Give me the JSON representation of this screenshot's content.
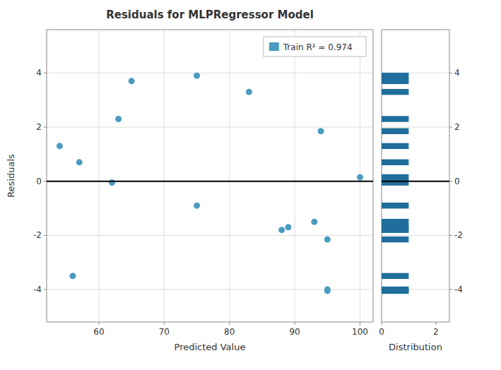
{
  "chart_data": [
    {
      "type": "scatter",
      "title": "Residuals for MLPRegressor Model",
      "x": [
        54,
        56,
        57,
        62,
        63,
        65,
        75,
        75,
        83,
        88,
        89,
        93,
        94,
        95,
        95,
        95,
        100
      ],
      "series": [
        {
          "name": "Train R² = 0.974",
          "color": "#4a9bbf",
          "values": [
            1.3,
            -3.5,
            0.7,
            -0.05,
            2.3,
            3.7,
            -0.9,
            3.9,
            3.3,
            -1.8,
            -1.7,
            -1.5,
            1.85,
            -2.15,
            -4.0,
            -4.05,
            0.15
          ]
        }
      ],
      "reference_line": 0,
      "xlabel": "Predicted Value",
      "ylabel": "Residuals",
      "xlim": [
        52,
        102
      ],
      "ylim": [
        -5.2,
        5.6
      ],
      "xticks": [
        60,
        70,
        80,
        90,
        100
      ],
      "yticks": [
        -4,
        -2,
        0,
        2,
        4
      ],
      "grid": true,
      "legend": "upper right"
    },
    {
      "type": "bar",
      "orientation": "horizontal",
      "x": [
        1.3,
        -3.5,
        0.7,
        -0.05,
        2.3,
        3.7,
        -0.9,
        3.9,
        3.3,
        -1.8,
        -1.7,
        -1.5,
        1.85,
        -2.15,
        -4.0,
        -4.05,
        0.15
      ],
      "values": [
        1.0,
        1.0,
        1.0,
        1.0,
        1.0,
        1.0,
        1.0,
        1.0,
        1.0,
        1.0,
        1.0,
        1.0,
        1.0,
        1.0,
        1.0,
        1.0,
        1.0
      ],
      "color": "#1f6e9c",
      "reference_line": 0,
      "xlabel": "Distribution",
      "xlim": [
        0,
        2.5
      ],
      "xticks": [
        0,
        2
      ],
      "ylim": [
        -5.2,
        5.6
      ],
      "yticks": [
        -4,
        -2,
        0,
        2,
        4
      ],
      "grid": "y"
    }
  ]
}
